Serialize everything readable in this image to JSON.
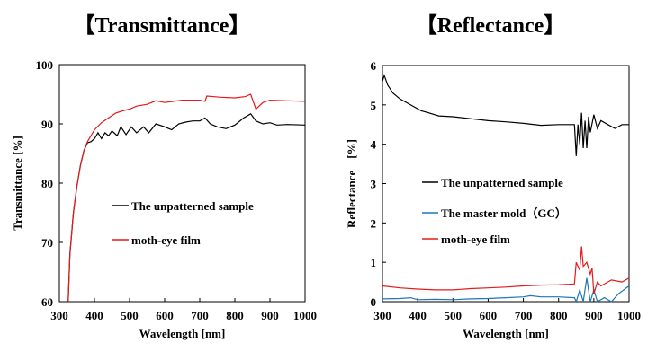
{
  "chart_data": [
    {
      "type": "line",
      "title": "【Transmittance】",
      "xlabel": "Wavelength [nm]",
      "ylabel": "Transmittance [%]",
      "xlim": [
        300,
        1000
      ],
      "ylim": [
        60,
        100
      ],
      "xticks": [
        300,
        400,
        500,
        600,
        700,
        800,
        900,
        1000
      ],
      "yticks": [
        60,
        70,
        80,
        90,
        100
      ],
      "grid": false,
      "legend_position": "center-right",
      "series": [
        {
          "name": "The unpatterned sample",
          "color": "#000000",
          "x": [
            325,
            330,
            340,
            350,
            360,
            370,
            380,
            390,
            400,
            410,
            420,
            430,
            440,
            450,
            465,
            475,
            490,
            505,
            520,
            540,
            555,
            575,
            600,
            620,
            640,
            660,
            680,
            700,
            715,
            730,
            750,
            775,
            800,
            825,
            845,
            860,
            880,
            900,
            920,
            950,
            1000
          ],
          "y": [
            60,
            68,
            75,
            79.5,
            83,
            85.5,
            86.8,
            87,
            87.5,
            88.5,
            87.5,
            88.5,
            88,
            88.8,
            88,
            89.5,
            88.2,
            89.5,
            88.5,
            89.5,
            88.5,
            90,
            89.5,
            89,
            90,
            90.3,
            90.5,
            90.5,
            91,
            90,
            89.5,
            89.2,
            89.8,
            91,
            91.7,
            90.5,
            90,
            90.2,
            89.8,
            89.9,
            89.8
          ]
        },
        {
          "name": "moth-eye film",
          "color": "#e41a1c",
          "x": [
            325,
            330,
            340,
            350,
            360,
            370,
            380,
            390,
            400,
            420,
            440,
            460,
            480,
            500,
            520,
            550,
            575,
            600,
            625,
            650,
            700,
            715,
            720,
            760,
            800,
            830,
            845,
            860,
            880,
            900,
            950,
            1000
          ],
          "y": [
            60,
            68,
            75,
            79.5,
            83,
            85.5,
            87,
            88,
            89,
            90.2,
            91,
            91.8,
            92.2,
            92.5,
            93,
            93.3,
            93.9,
            93.6,
            93.8,
            94,
            94,
            93.8,
            94.7,
            94.5,
            94.4,
            94.6,
            95,
            92.5,
            93.6,
            94,
            93.9,
            93.8
          ]
        }
      ]
    },
    {
      "type": "line",
      "title": "【Reflectance】",
      "xlabel": "Wavelength [nm]",
      "ylabel": "Reflectance　[%]",
      "xlim": [
        300,
        1000
      ],
      "ylim": [
        0,
        6
      ],
      "xticks": [
        300,
        400,
        500,
        600,
        700,
        800,
        900,
        1000
      ],
      "yticks": [
        0,
        1,
        2,
        3,
        4,
        5,
        6
      ],
      "grid": false,
      "legend_position": "center-right",
      "series": [
        {
          "name": "The unpatterned sample",
          "color": "#000000",
          "x": [
            300,
            305,
            315,
            330,
            350,
            370,
            390,
            410,
            430,
            460,
            500,
            550,
            600,
            650,
            700,
            750,
            800,
            845,
            850,
            855,
            860,
            865,
            870,
            875,
            880,
            885,
            890,
            900,
            910,
            920,
            940,
            960,
            980,
            1000
          ],
          "y": [
            5.6,
            5.75,
            5.5,
            5.3,
            5.15,
            5.05,
            4.95,
            4.85,
            4.8,
            4.72,
            4.7,
            4.65,
            4.6,
            4.57,
            4.53,
            4.48,
            4.5,
            4.5,
            3.7,
            4.5,
            4.0,
            4.8,
            3.9,
            4.6,
            3.9,
            4.7,
            4.3,
            4.75,
            4.4,
            4.6,
            4.5,
            4.4,
            4.5,
            4.5
          ]
        },
        {
          "name": "The master mold（GC）",
          "color": "#1f77b4",
          "x": [
            300,
            350,
            380,
            400,
            450,
            500,
            550,
            600,
            650,
            700,
            720,
            750,
            800,
            845,
            850,
            860,
            870,
            880,
            890,
            900,
            910,
            930,
            950,
            970,
            1000
          ],
          "y": [
            0.07,
            0.08,
            0.1,
            0.05,
            0.06,
            0.05,
            0.07,
            0.08,
            0.1,
            0.12,
            0.15,
            0.12,
            0.12,
            0.1,
            0,
            0.3,
            0,
            0.6,
            0,
            0.3,
            0,
            0.1,
            0,
            0.2,
            0.4
          ]
        },
        {
          "name": "moth-eye film",
          "color": "#e41a1c",
          "x": [
            300,
            350,
            400,
            450,
            500,
            550,
            600,
            650,
            700,
            750,
            800,
            845,
            850,
            860,
            865,
            870,
            880,
            890,
            895,
            900,
            910,
            920,
            950,
            980,
            1000
          ],
          "y": [
            0.4,
            0.35,
            0.32,
            0.3,
            0.3,
            0.33,
            0.35,
            0.37,
            0.4,
            0.42,
            0.43,
            0.45,
            1.0,
            0.8,
            1.4,
            0.9,
            1.0,
            0.7,
            0.85,
            0.2,
            0.5,
            0.4,
            0.55,
            0.5,
            0.6
          ]
        }
      ]
    }
  ]
}
